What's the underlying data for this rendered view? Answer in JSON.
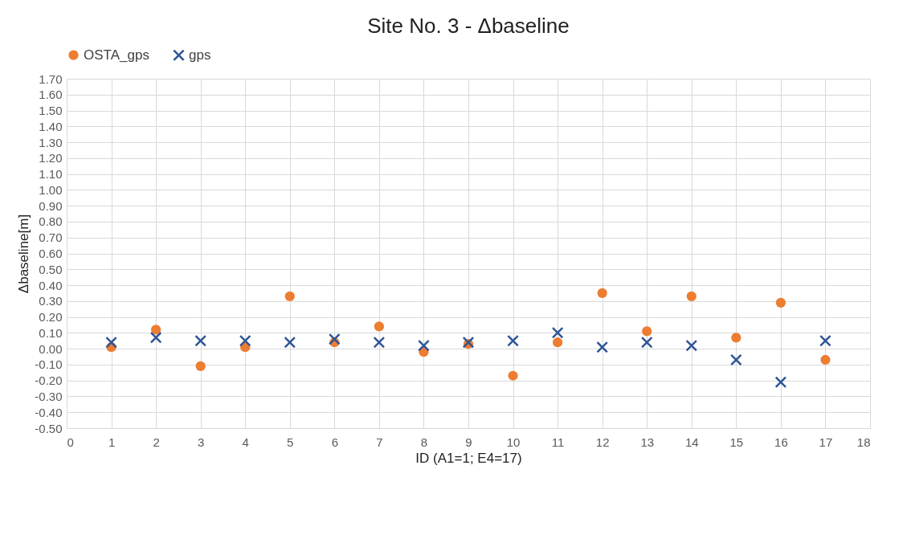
{
  "chart_data": {
    "type": "scatter",
    "title": "Site No. 3 - Δbaseline",
    "xlabel": "ID (A1=1; E4=17)",
    "ylabel": "Δbaseline[m]",
    "x": [
      1,
      2,
      3,
      4,
      5,
      6,
      7,
      8,
      9,
      10,
      11,
      12,
      13,
      14,
      15,
      16,
      17
    ],
    "series": [
      {
        "name": "OSTA_gps",
        "color": "#ed7d31",
        "marker": "circle",
        "values": [
          0.01,
          0.12,
          -0.11,
          0.01,
          0.33,
          0.04,
          0.14,
          -0.02,
          0.03,
          -0.17,
          0.04,
          0.35,
          0.11,
          0.33,
          0.07,
          0.29,
          -0.07
        ]
      },
      {
        "name": "gps",
        "color": "#2f5597",
        "marker": "cross",
        "values": [
          0.04,
          0.07,
          0.05,
          0.05,
          0.04,
          0.06,
          0.04,
          0.02,
          0.04,
          0.05,
          0.1,
          0.01,
          0.04,
          0.02,
          -0.07,
          -0.21,
          0.05
        ]
      }
    ],
    "xlim": [
      0,
      18
    ],
    "xticks": [
      0,
      1,
      2,
      3,
      4,
      5,
      6,
      7,
      8,
      9,
      10,
      11,
      12,
      13,
      14,
      15,
      16,
      17,
      18
    ],
    "ylim": [
      -0.5,
      1.7
    ],
    "yticks": [
      {
        "value": -0.5,
        "label": "-0.50"
      },
      {
        "value": -0.4,
        "label": "-0.40"
      },
      {
        "value": -0.3,
        "label": "-0.30"
      },
      {
        "value": -0.2,
        "label": "-0.20"
      },
      {
        "value": -0.1,
        "label": "-0.10"
      },
      {
        "value": 0,
        "label": "0.00"
      },
      {
        "value": 0.1,
        "label": "0.10"
      },
      {
        "value": 0.2,
        "label": "0.20"
      },
      {
        "value": 0.3,
        "label": "0.30"
      },
      {
        "value": 0.4,
        "label": "0.40"
      },
      {
        "value": 0.5,
        "label": "0.50"
      },
      {
        "value": 0.6,
        "label": "0.60"
      },
      {
        "value": 0.7,
        "label": "0.70"
      },
      {
        "value": 0.8,
        "label": "0.80"
      },
      {
        "value": 0.9,
        "label": "0.90"
      },
      {
        "value": 1.0,
        "label": "1.00"
      },
      {
        "value": 1.1,
        "label": "1.10"
      },
      {
        "value": 1.2,
        "label": "1.20"
      },
      {
        "value": 1.3,
        "label": "1.30"
      },
      {
        "value": 1.4,
        "label": "1.40"
      },
      {
        "value": 1.5,
        "label": "1.50"
      },
      {
        "value": 1.6,
        "label": "1.60"
      },
      {
        "value": 1.7,
        "label": "1.70"
      }
    ],
    "grid": true,
    "legend": "top"
  }
}
